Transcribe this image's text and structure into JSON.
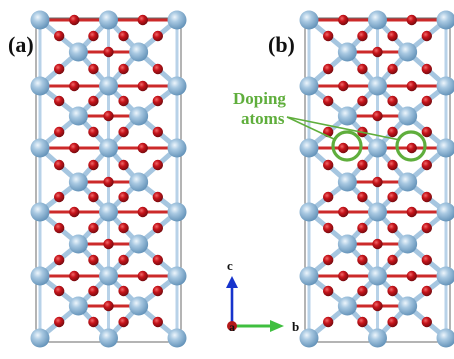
{
  "panels": [
    {
      "label": "(a)",
      "doping_sites": []
    },
    {
      "label": "(b)",
      "doping_sites": [
        3,
        5
      ]
    }
  ],
  "annotation": {
    "line1": "Doping",
    "line2": "atoms",
    "color": "#5fae3c"
  },
  "axes": {
    "c_label": "c",
    "a_label": "a",
    "b_label": "b",
    "c_color": "#1633cc",
    "b_color": "#3fbf3f",
    "a_color": "#b31919"
  },
  "atom_colors": {
    "metal": "#93bbd9",
    "metal_shade": "#5f8fb6",
    "oxygen": "#c8141b",
    "oxygen_shade": "#7a0c10",
    "bond_metal": "#a6c6e0",
    "bond_oxygen": "#cc2a2a"
  }
}
